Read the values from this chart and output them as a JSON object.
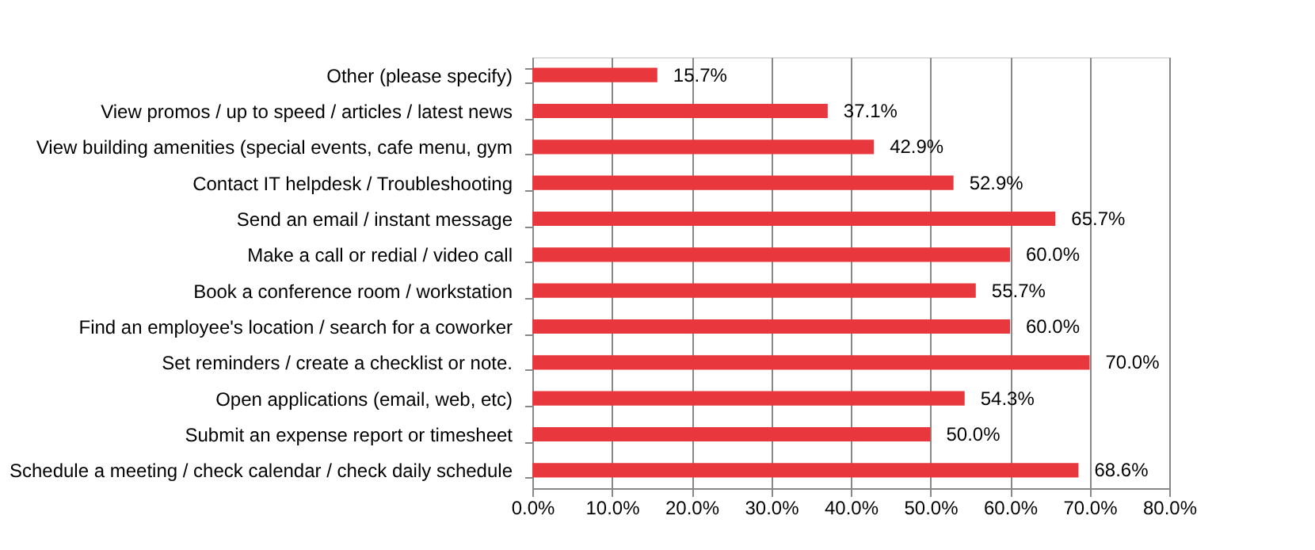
{
  "chart_data": {
    "type": "bar",
    "orientation": "horizontal",
    "categories": [
      "Other (please specify)",
      "View promos / up to speed / articles  / latest news",
      "View building amenities (special events, cafe menu, gym",
      "Contact IT helpdesk / Troubleshooting",
      "Send an email / instant message",
      "Make a call or redial / video call",
      "Book a conference room / workstation",
      "Find an employee's location / search for a coworker",
      "Set reminders / create a checklist or note. ",
      "Open applications (email, web, etc)",
      "Submit an expense report or timesheet",
      "Schedule a meeting / check calendar / check daily schedule"
    ],
    "values": [
      15.7,
      37.1,
      42.9,
      52.9,
      65.7,
      60.0,
      55.7,
      60.0,
      70.0,
      54.3,
      50.0,
      68.6
    ],
    "value_labels": [
      "15.7%",
      "37.1%",
      "42.9%",
      "52.9%",
      "65.7%",
      "60.0%",
      "55.7%",
      "60.0%",
      "70.0%",
      "54.3%",
      "50.0%",
      "68.6%"
    ],
    "color": "#e8383d",
    "xlim": [
      0,
      80
    ],
    "xticks": [
      {
        "value": 0,
        "label": "0.0%"
      },
      {
        "value": 10,
        "label": "10.0%"
      },
      {
        "value": 20,
        "label": "20.0%"
      },
      {
        "value": 30,
        "label": "30.0%"
      },
      {
        "value": 40,
        "label": "40.0%"
      },
      {
        "value": 50,
        "label": "50.0%"
      },
      {
        "value": 60,
        "label": "60.0%"
      },
      {
        "value": 70,
        "label": "70.0%"
      },
      {
        "value": 80,
        "label": "80.0%"
      }
    ],
    "grid": "x"
  }
}
